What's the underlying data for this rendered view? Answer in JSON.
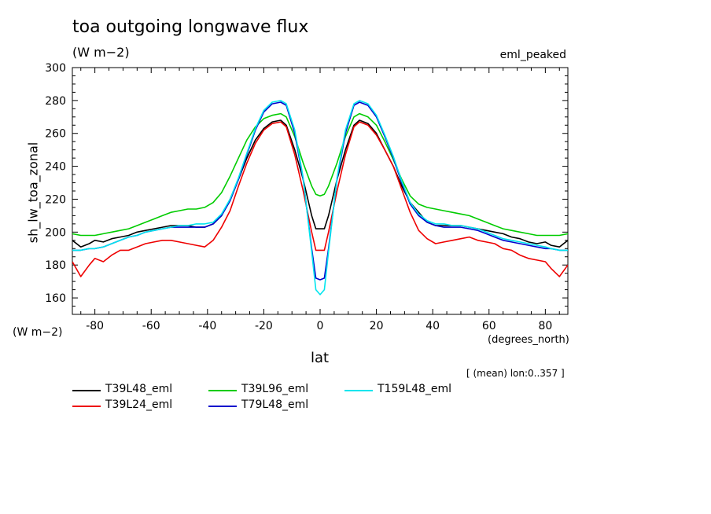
{
  "header": {
    "title": "toa outgoing longwave flux",
    "units": "(W m−2)",
    "tag": "eml_peaked"
  },
  "axes": {
    "ylabel": "sh_lw_toa_zonal",
    "yunits": "(W m−2)",
    "xlabel": "lat",
    "xunits": "(degrees_north)",
    "mean_note": "[ (mean) lon:0..357 ]"
  },
  "chart_data": {
    "type": "line",
    "xlabel": "lat",
    "ylabel": "sh_lw_toa_zonal",
    "xlim": [
      -88,
      88
    ],
    "ylim": [
      150,
      300
    ],
    "xticks": [
      -80,
      -60,
      -40,
      -20,
      0,
      20,
      40,
      60,
      80
    ],
    "yticks": [
      160,
      180,
      200,
      220,
      240,
      260,
      280,
      300
    ],
    "x": [
      -88,
      -85,
      -82,
      -80,
      -77,
      -74,
      -71,
      -68,
      -65,
      -62,
      -59,
      -56,
      -53,
      -50,
      -47,
      -44,
      -41,
      -38,
      -35,
      -32,
      -29,
      -26,
      -23,
      -20,
      -17,
      -14,
      -12,
      -9,
      -6,
      -3,
      -1.5,
      0,
      1.5,
      3,
      6,
      9,
      12,
      14,
      17,
      20,
      23,
      26,
      29,
      32,
      35,
      38,
      41,
      44,
      47,
      50,
      53,
      56,
      59,
      62,
      65,
      68,
      71,
      74,
      77,
      80,
      82,
      85,
      88
    ],
    "series": [
      {
        "name": "T39L48_eml",
        "color": "#000000",
        "values": [
          195,
          191,
          193,
          195,
          194,
          196,
          197,
          198,
          200,
          201,
          202,
          203,
          204,
          204,
          204,
          203,
          203,
          205,
          210,
          220,
          232,
          245,
          256,
          263,
          267,
          268,
          265,
          250,
          232,
          210,
          202,
          202,
          202,
          210,
          232,
          250,
          265,
          268,
          266,
          260,
          250,
          240,
          228,
          218,
          212,
          206,
          204,
          204,
          204,
          204,
          203,
          202,
          201,
          200,
          199,
          197,
          196,
          194,
          193,
          194,
          192,
          191,
          195
        ]
      },
      {
        "name": "T39L24_eml",
        "color": "#ee0000",
        "values": [
          182,
          173,
          180,
          184,
          182,
          186,
          189,
          189,
          191,
          193,
          194,
          195,
          195,
          194,
          193,
          192,
          191,
          195,
          203,
          213,
          228,
          242,
          254,
          262,
          266,
          267,
          264,
          247,
          225,
          200,
          189,
          189,
          189,
          200,
          225,
          247,
          264,
          267,
          265,
          259,
          250,
          240,
          226,
          212,
          201,
          196,
          193,
          194,
          195,
          196,
          197,
          195,
          194,
          193,
          190,
          189,
          186,
          184,
          183,
          182,
          178,
          173,
          180
        ]
      },
      {
        "name": "T39L96_eml",
        "color": "#00cc00",
        "values": [
          199,
          198,
          198,
          198,
          199,
          200,
          201,
          202,
          204,
          206,
          208,
          210,
          212,
          213,
          214,
          214,
          215,
          218,
          224,
          234,
          245,
          256,
          264,
          269,
          271,
          272,
          270,
          258,
          242,
          228,
          223,
          222,
          223,
          228,
          242,
          258,
          270,
          272,
          270,
          265,
          255,
          244,
          232,
          222,
          217,
          215,
          214,
          213,
          212,
          211,
          210,
          208,
          206,
          204,
          202,
          201,
          200,
          199,
          198,
          198,
          198,
          198,
          199
        ]
      },
      {
        "name": "T79L48_eml",
        "color": "#0000cc",
        "values": [
          189,
          189,
          190,
          190,
          191,
          193,
          195,
          197,
          198,
          200,
          201,
          202,
          203,
          203,
          203,
          203,
          203,
          205,
          210,
          219,
          232,
          247,
          262,
          273,
          278,
          279,
          277,
          260,
          232,
          190,
          172,
          171,
          172,
          190,
          232,
          260,
          277,
          279,
          277,
          270,
          258,
          245,
          230,
          217,
          210,
          206,
          204,
          203,
          203,
          203,
          202,
          201,
          199,
          197,
          195,
          194,
          193,
          192,
          191,
          190,
          190,
          189,
          189
        ]
      },
      {
        "name": "T159L48_eml",
        "color": "#00e5ee",
        "values": [
          189,
          189,
          190,
          190,
          191,
          193,
          195,
          197,
          198,
          200,
          201,
          202,
          203,
          204,
          204,
          205,
          205,
          206,
          211,
          220,
          233,
          248,
          263,
          274,
          279,
          280,
          278,
          262,
          233,
          188,
          165,
          162,
          165,
          188,
          233,
          262,
          278,
          280,
          278,
          271,
          259,
          246,
          231,
          218,
          211,
          207,
          205,
          205,
          204,
          204,
          203,
          202,
          200,
          198,
          196,
          195,
          194,
          193,
          192,
          191,
          190,
          189,
          189
        ]
      }
    ]
  }
}
